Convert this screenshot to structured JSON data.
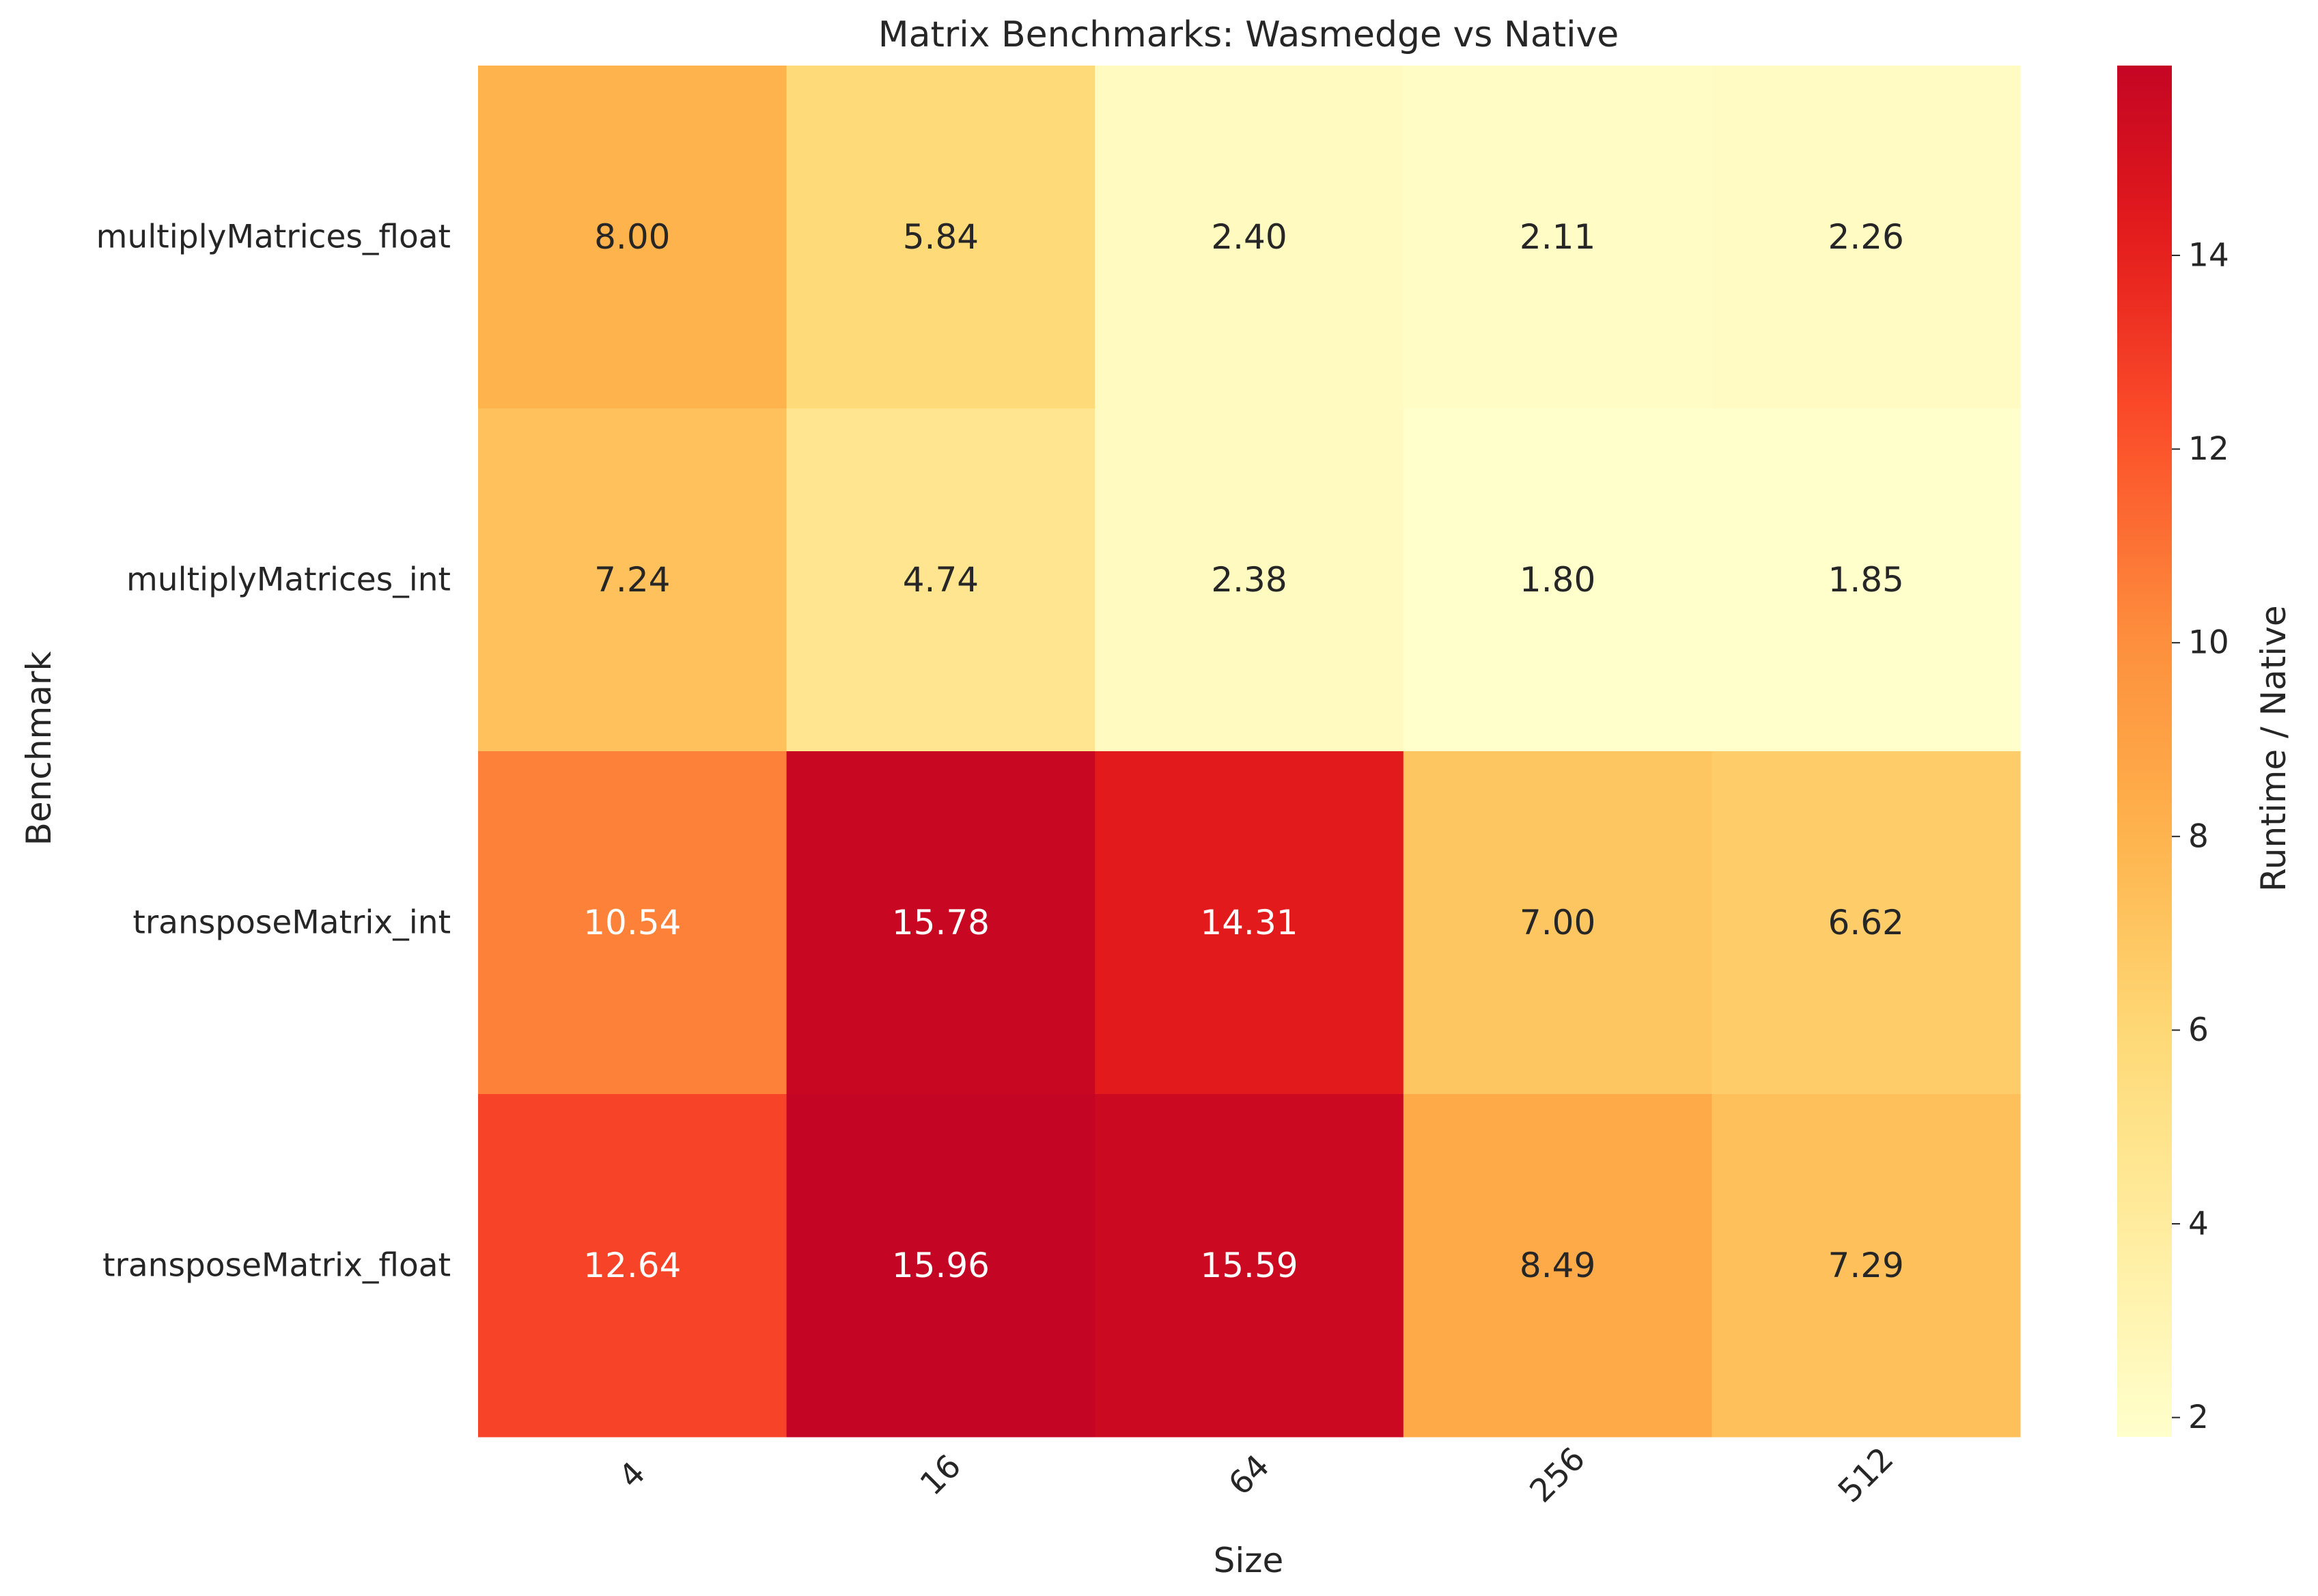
{
  "chart_data": {
    "type": "heatmap",
    "title": "Matrix Benchmarks: Wasmedge vs Native",
    "xlabel": "Size",
    "ylabel": "Benchmark",
    "x_categories": [
      "4",
      "16",
      "64",
      "256",
      "512"
    ],
    "y_categories": [
      "multiplyMatrices_float",
      "multiplyMatrices_int",
      "transposeMatrix_int",
      "transposeMatrix_float"
    ],
    "values": [
      [
        8.0,
        5.84,
        2.4,
        2.11,
        2.26
      ],
      [
        7.24,
        4.74,
        2.38,
        1.8,
        1.85
      ],
      [
        10.54,
        15.78,
        14.31,
        7.0,
        6.62
      ],
      [
        12.64,
        15.96,
        15.59,
        8.49,
        7.29
      ]
    ],
    "value_format": "0.00",
    "colorbar": {
      "label": "Runtime / Native",
      "range": [
        1.8,
        15.96
      ],
      "ticks": [
        2,
        4,
        6,
        8,
        10,
        12,
        14
      ],
      "colormap": "YlOrRd",
      "colormap_stops": [
        "#ffffcc",
        "#ffeda0",
        "#fed976",
        "#feb24c",
        "#fd8d3c",
        "#fc4e2a",
        "#e31a1c",
        "#bd0026",
        "#800026"
      ],
      "colormap_used_fraction": 0.85
    },
    "grid": false,
    "x_tick_rotation_deg": -45
  }
}
